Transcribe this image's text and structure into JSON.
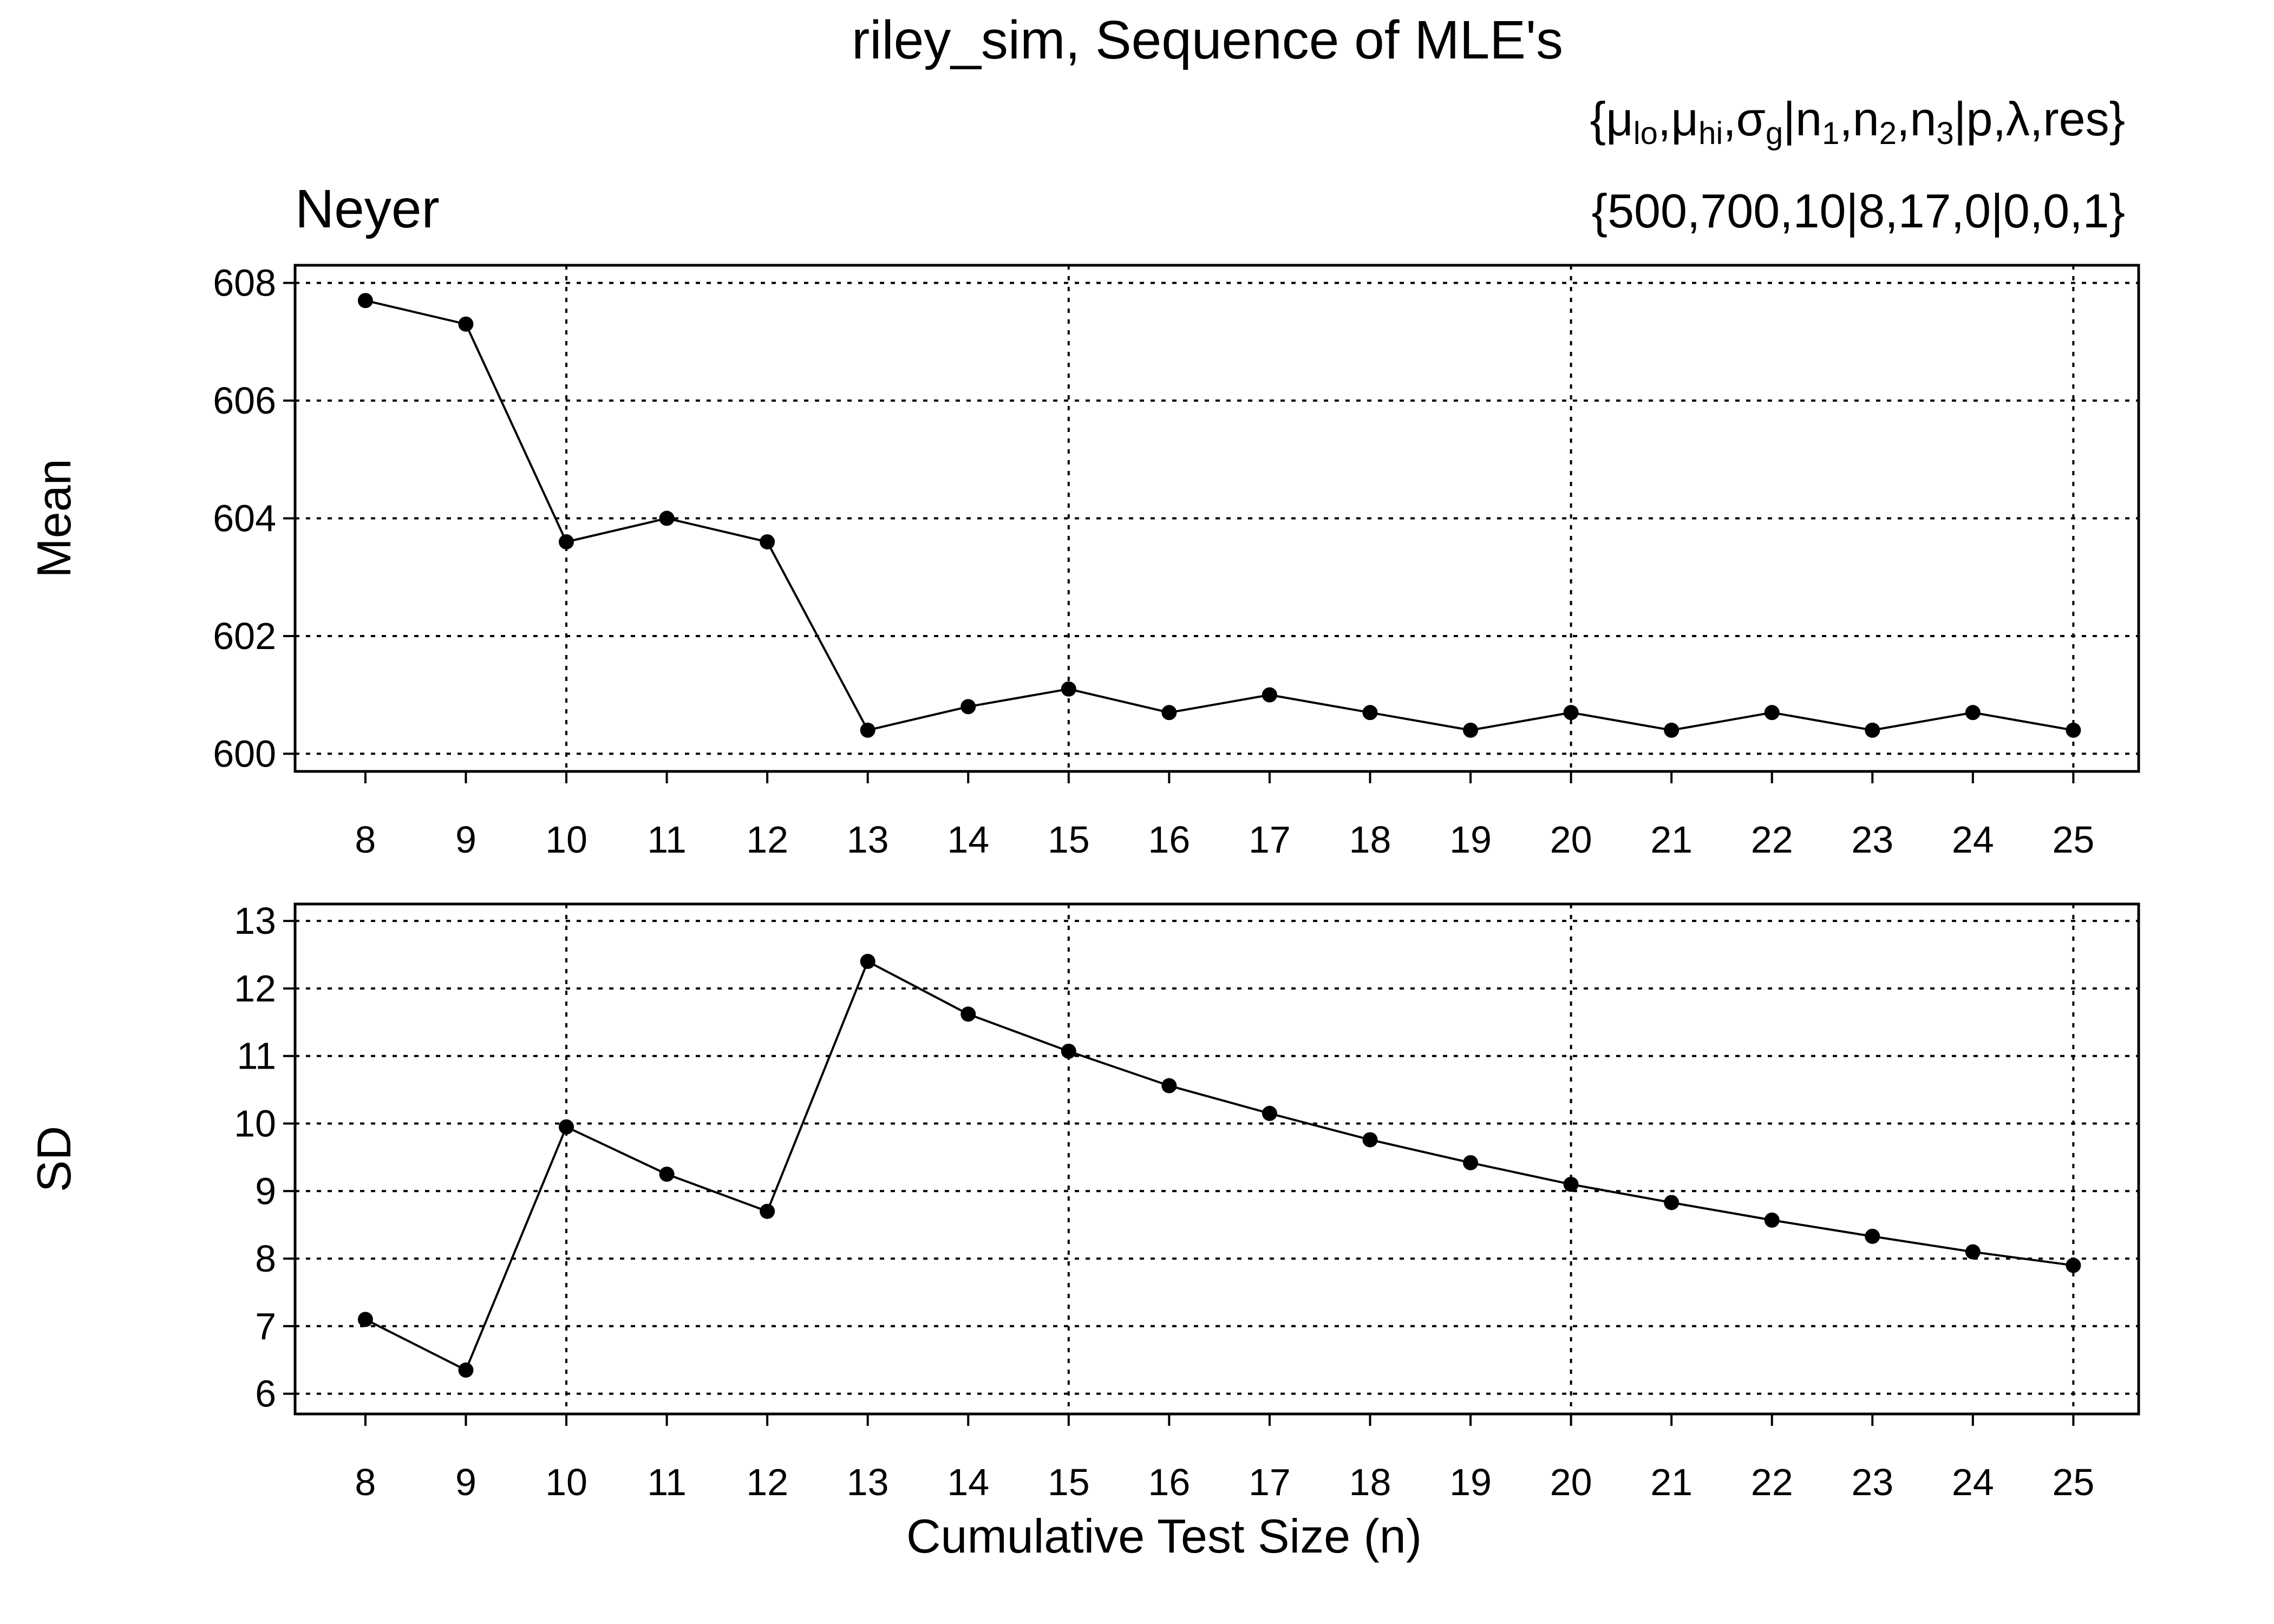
{
  "chart_data": [
    {
      "type": "line",
      "title": "riley_sim, Sequence of MLE's",
      "method": "Neyer",
      "param_header": "{μlo,μhi,σg|n1,n2,n3|p,λ,res}",
      "param_values": "{500,700,10|8,17,0|0,0,1}",
      "ylabel": "Mean",
      "xlabel": "",
      "x": [
        8,
        9,
        10,
        11,
        12,
        13,
        14,
        15,
        16,
        17,
        18,
        19,
        20,
        21,
        22,
        23,
        24,
        25
      ],
      "xlim": [
        7.3,
        25.65
      ],
      "xticks": [
        8,
        9,
        10,
        11,
        12,
        13,
        14,
        15,
        16,
        17,
        18,
        19,
        20,
        21,
        22,
        23,
        24,
        25
      ],
      "ylim": [
        599.7,
        608.3
      ],
      "yticks": [
        600,
        602,
        604,
        606,
        608
      ],
      "xgrid": [
        10,
        15,
        20,
        25
      ],
      "grid": true,
      "series": [
        {
          "values": [
            607.7,
            607.3,
            603.6,
            604.0,
            603.6,
            600.4,
            600.8,
            601.1,
            600.7,
            601.0,
            600.7,
            600.4,
            600.7,
            600.4,
            600.7,
            600.4,
            600.7,
            600.4
          ]
        }
      ]
    },
    {
      "type": "line",
      "ylabel": "SD",
      "xlabel": "Cumulative Test Size (n)",
      "x": [
        8,
        9,
        10,
        11,
        12,
        13,
        14,
        15,
        16,
        17,
        18,
        19,
        20,
        21,
        22,
        23,
        24,
        25
      ],
      "xlim": [
        7.3,
        25.65
      ],
      "xticks": [
        8,
        9,
        10,
        11,
        12,
        13,
        14,
        15,
        16,
        17,
        18,
        19,
        20,
        21,
        22,
        23,
        24,
        25
      ],
      "ylim": [
        5.7,
        13.25
      ],
      "yticks": [
        6,
        7,
        8,
        9,
        10,
        11,
        12,
        13
      ],
      "xgrid": [
        10,
        15,
        20,
        25
      ],
      "grid": true,
      "series": [
        {
          "values": [
            7.1,
            6.35,
            9.95,
            9.25,
            8.7,
            12.4,
            11.62,
            11.07,
            10.56,
            10.15,
            9.76,
            9.42,
            9.1,
            8.83,
            8.57,
            8.33,
            8.1,
            7.9
          ]
        }
      ]
    }
  ]
}
